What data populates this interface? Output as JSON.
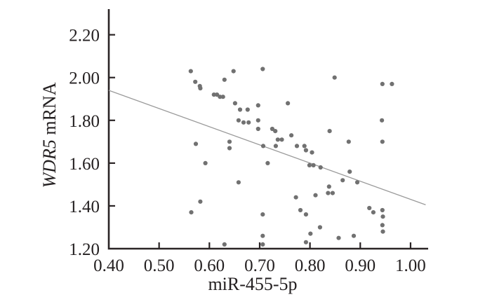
{
  "chart_data": {
    "type": "scatter",
    "xlabel": "miR-455-5p",
    "ylabel": "WDR5 mRNA",
    "ylabel_italic": "WDR5",
    "ylabel_rest": " mRNA",
    "xlim": [
      0.4,
      1.035
    ],
    "ylim": [
      1.2,
      2.32
    ],
    "x_ticks": [
      0.4,
      0.5,
      0.6,
      0.7,
      0.8,
      0.9,
      1.0
    ],
    "x_tick_labels": [
      "0.40",
      "0.50",
      "0.60",
      "0.70",
      "0.80",
      "0.90",
      "1.00"
    ],
    "y_ticks": [
      1.2,
      1.4,
      1.6,
      1.8,
      2.0,
      2.2
    ],
    "y_tick_labels": [
      "1.20",
      "1.40",
      "1.60",
      "1.80",
      "2.00",
      "2.20"
    ],
    "grid": false,
    "legend": false,
    "axis_color": "#2a2425",
    "text_color": "#231f20",
    "point_color": "#717171",
    "trend_color": "#9a9a9a",
    "trendline": {
      "x1": 0.4,
      "y1": 1.94,
      "x2": 1.03,
      "y2": 1.405
    },
    "points": [
      [
        0.563,
        2.03
      ],
      [
        0.572,
        1.98
      ],
      [
        0.581,
        1.96
      ],
      [
        0.582,
        1.95
      ],
      [
        0.609,
        1.92
      ],
      [
        0.615,
        1.92
      ],
      [
        0.621,
        1.91
      ],
      [
        0.627,
        1.91
      ],
      [
        0.63,
        1.99
      ],
      [
        0.648,
        2.03
      ],
      [
        0.706,
        2.04
      ],
      [
        0.651,
        1.88
      ],
      [
        0.661,
        1.85
      ],
      [
        0.676,
        1.85
      ],
      [
        0.697,
        1.87
      ],
      [
        0.756,
        1.88
      ],
      [
        0.658,
        1.8
      ],
      [
        0.668,
        1.79
      ],
      [
        0.678,
        1.79
      ],
      [
        0.697,
        1.8
      ],
      [
        0.697,
        1.76
      ],
      [
        0.725,
        1.76
      ],
      [
        0.731,
        1.75
      ],
      [
        0.736,
        1.71
      ],
      [
        0.744,
        1.71
      ],
      [
        0.763,
        1.73
      ],
      [
        0.64,
        1.7
      ],
      [
        0.64,
        1.67
      ],
      [
        0.573,
        1.69
      ],
      [
        0.707,
        1.68
      ],
      [
        0.732,
        1.68
      ],
      [
        0.774,
        1.68
      ],
      [
        0.789,
        1.68
      ],
      [
        0.792,
        1.66
      ],
      [
        0.804,
        1.65
      ],
      [
        0.849,
        2.0
      ],
      [
        0.944,
        1.97
      ],
      [
        0.963,
        1.97
      ],
      [
        0.943,
        1.8
      ],
      [
        0.839,
        1.75
      ],
      [
        0.877,
        1.7
      ],
      [
        0.944,
        1.7
      ],
      [
        0.592,
        1.6
      ],
      [
        0.716,
        1.6
      ],
      [
        0.799,
        1.59
      ],
      [
        0.807,
        1.59
      ],
      [
        0.821,
        1.58
      ],
      [
        0.865,
        1.52
      ],
      [
        0.879,
        1.56
      ],
      [
        0.894,
        1.51
      ],
      [
        0.838,
        1.49
      ],
      [
        0.836,
        1.46
      ],
      [
        0.845,
        1.46
      ],
      [
        0.811,
        1.45
      ],
      [
        0.658,
        1.51
      ],
      [
        0.772,
        1.44
      ],
      [
        0.582,
        1.42
      ],
      [
        0.564,
        1.37
      ],
      [
        0.706,
        1.36
      ],
      [
        0.781,
        1.38
      ],
      [
        0.792,
        1.36
      ],
      [
        0.918,
        1.39
      ],
      [
        0.926,
        1.37
      ],
      [
        0.944,
        1.38
      ],
      [
        0.945,
        1.35
      ],
      [
        0.82,
        1.3
      ],
      [
        0.944,
        1.31
      ],
      [
        0.945,
        1.28
      ],
      [
        0.706,
        1.26
      ],
      [
        0.706,
        1.22
      ],
      [
        0.63,
        1.22
      ],
      [
        0.792,
        1.23
      ],
      [
        0.801,
        1.27
      ],
      [
        0.857,
        1.25
      ],
      [
        0.887,
        1.26
      ]
    ]
  }
}
